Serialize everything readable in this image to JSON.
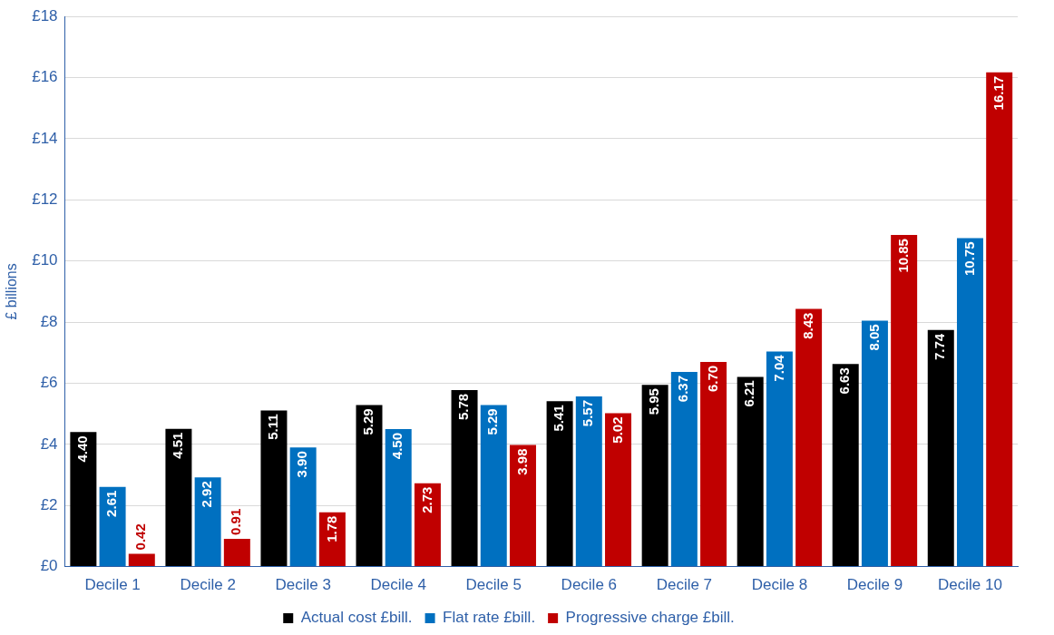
{
  "chart_data": {
    "type": "bar",
    "ylabel": "£ billions",
    "categories": [
      "Decile 1",
      "Decile 2",
      "Decile 3",
      "Decile 4",
      "Decile 5",
      "Decile 6",
      "Decile 7",
      "Decile 8",
      "Decile 9",
      "Decile 10"
    ],
    "series": [
      {
        "name": "Actual cost £bill.",
        "color": "#000000",
        "values": [
          4.4,
          4.51,
          5.11,
          5.29,
          5.78,
          5.41,
          5.95,
          6.21,
          6.63,
          7.74
        ],
        "value_labels": [
          "4.40",
          "4.51",
          "5.11",
          "5.29",
          "5.78",
          "5.41",
          "5.95",
          "6.21",
          "6.63",
          "7.74"
        ]
      },
      {
        "name": "Flat rate £bill.",
        "color": "#0070c0",
        "values": [
          2.61,
          2.92,
          3.9,
          4.5,
          5.29,
          5.57,
          6.37,
          7.04,
          8.05,
          10.75
        ],
        "value_labels": [
          "2.61",
          "2.92",
          "3.90",
          "4.50",
          "5.29",
          "5.57",
          "6.37",
          "7.04",
          "8.05",
          "10.75"
        ]
      },
      {
        "name": "Progressive charge £bill.",
        "color": "#c00000",
        "values": [
          0.42,
          0.91,
          1.78,
          2.73,
          3.98,
          5.02,
          6.7,
          8.43,
          10.85,
          16.17
        ],
        "value_labels": [
          "0.42",
          "0.91",
          "1.78",
          "2.73",
          "3.98",
          "5.02",
          "6.70",
          "8.43",
          "10.85",
          "16.17"
        ]
      }
    ],
    "ylim": [
      0,
      18
    ],
    "yticks": [
      {
        "value": 0,
        "label": "£0"
      },
      {
        "value": 2,
        "label": "£2"
      },
      {
        "value": 4,
        "label": "£4"
      },
      {
        "value": 6,
        "label": "£6"
      },
      {
        "value": 8,
        "label": "£8"
      },
      {
        "value": 10,
        "label": "£10"
      },
      {
        "value": 12,
        "label": "£12"
      },
      {
        "value": 14,
        "label": "£14"
      },
      {
        "value": 16,
        "label": "£16"
      },
      {
        "value": 18,
        "label": "£18"
      }
    ],
    "grid": "y",
    "legend": "bottom"
  }
}
